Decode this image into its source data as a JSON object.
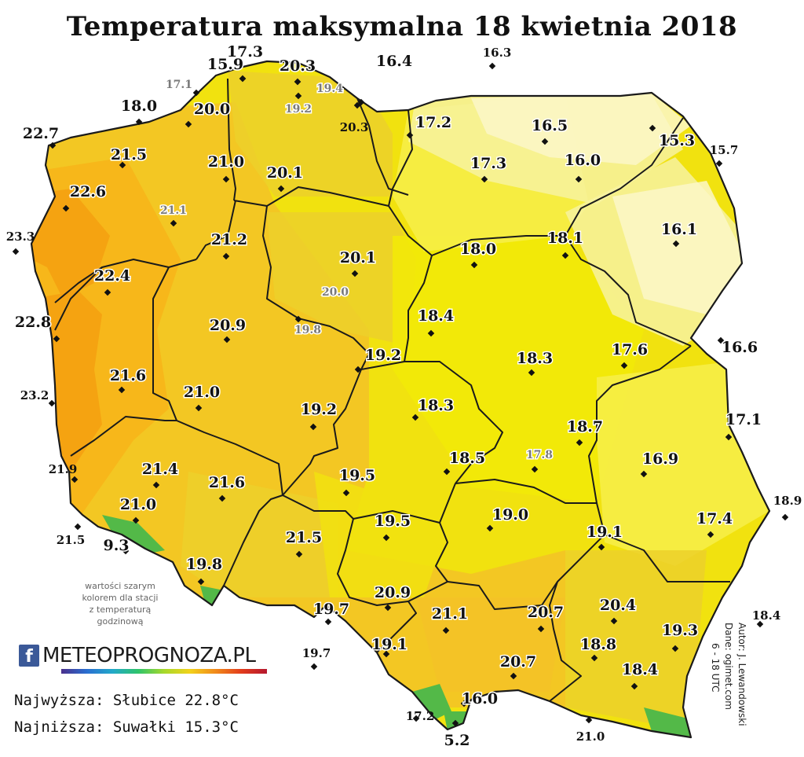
{
  "title": "Temperatura maksymalna 18 kwietnia 2018",
  "colors": {
    "outside": "#ffffff",
    "temp_23": "#f5a010",
    "temp_22": "#f7b419",
    "temp_21": "#f3c227",
    "temp_20": "#ecd02a",
    "temp_19": "#f1e20f",
    "temp_18": "#f2ea07",
    "temp_17": "#f7ef4a",
    "temp_16": "#f7f2a0",
    "temp_15": "#fbf7c8",
    "mountain": "#53b948",
    "border": "#1a1a1a"
  },
  "stations": [
    {
      "value": "17.3",
      "style": "bold"
    },
    {
      "value": "15.9",
      "style": "bold"
    },
    {
      "value": "20.3",
      "style": "bold"
    },
    {
      "value": "16.4",
      "style": "bold"
    },
    {
      "value": "16.3",
      "style": "small"
    },
    {
      "value": "17.1",
      "style": "gray"
    },
    {
      "value": "19.4",
      "style": "gray"
    },
    {
      "value": "19.2",
      "style": "gray"
    },
    {
      "value": "18.0",
      "style": "bold"
    },
    {
      "value": "20.0",
      "style": "bold"
    },
    {
      "value": "20.3",
      "style": "small"
    },
    {
      "value": "17.2",
      "style": "bold"
    },
    {
      "value": "16.5",
      "style": "bold"
    },
    {
      "value": "22.7",
      "style": "bold"
    },
    {
      "value": "15.3",
      "style": "bold"
    },
    {
      "value": "15.7",
      "style": "small"
    },
    {
      "value": "21.5",
      "style": "bold"
    },
    {
      "value": "21.0",
      "style": "bold"
    },
    {
      "value": "17.3",
      "style": "bold"
    },
    {
      "value": "16.0",
      "style": "bold"
    },
    {
      "value": "20.1",
      "style": "bold"
    },
    {
      "value": "22.6",
      "style": "bold"
    },
    {
      "value": "21.1",
      "style": "gray"
    },
    {
      "value": "16.1",
      "style": "bold"
    },
    {
      "value": "23.3",
      "style": "small"
    },
    {
      "value": "21.2",
      "style": "bold"
    },
    {
      "value": "18.0",
      "style": "bold"
    },
    {
      "value": "18.1",
      "style": "bold"
    },
    {
      "value": "20.1",
      "style": "bold"
    },
    {
      "value": "22.4",
      "style": "bold"
    },
    {
      "value": "20.0",
      "style": "gray"
    },
    {
      "value": "18.4",
      "style": "bold"
    },
    {
      "value": "22.8",
      "style": "bold"
    },
    {
      "value": "19.8",
      "style": "gray"
    },
    {
      "value": "20.9",
      "style": "bold"
    },
    {
      "value": "16.6",
      "style": "bold"
    },
    {
      "value": "17.6",
      "style": "bold"
    },
    {
      "value": "19.2",
      "style": "bold"
    },
    {
      "value": "18.3",
      "style": "bold"
    },
    {
      "value": "21.6",
      "style": "bold"
    },
    {
      "value": "23.2",
      "style": "small"
    },
    {
      "value": "21.0",
      "style": "bold"
    },
    {
      "value": "18.3",
      "style": "bold"
    },
    {
      "value": "19.2",
      "style": "bold"
    },
    {
      "value": "17.1",
      "style": "bold"
    },
    {
      "value": "18.7",
      "style": "bold"
    },
    {
      "value": "16.9",
      "style": "bold"
    },
    {
      "value": "18.5",
      "style": "bold"
    },
    {
      "value": "17.8",
      "style": "gray"
    },
    {
      "value": "21.4",
      "style": "bold"
    },
    {
      "value": "21.9",
      "style": "small"
    },
    {
      "value": "19.5",
      "style": "bold"
    },
    {
      "value": "21.6",
      "style": "bold"
    },
    {
      "value": "18.9",
      "style": "small"
    },
    {
      "value": "21.0",
      "style": "bold"
    },
    {
      "value": "19.0",
      "style": "bold"
    },
    {
      "value": "17.4",
      "style": "bold"
    },
    {
      "value": "19.5",
      "style": "bold"
    },
    {
      "value": "21.5",
      "style": "small"
    },
    {
      "value": "9.3",
      "style": "bold"
    },
    {
      "value": "21.5",
      "style": "bold"
    },
    {
      "value": "19.1",
      "style": "bold"
    },
    {
      "value": "19.8",
      "style": "bold"
    },
    {
      "value": "20.9",
      "style": "bold"
    },
    {
      "value": "20.4",
      "style": "bold"
    },
    {
      "value": "19.7",
      "style": "bold"
    },
    {
      "value": "21.1",
      "style": "bold"
    },
    {
      "value": "20.7",
      "style": "bold"
    },
    {
      "value": "18.4",
      "style": "small"
    },
    {
      "value": "19.3",
      "style": "bold"
    },
    {
      "value": "19.1",
      "style": "bold"
    },
    {
      "value": "18.8",
      "style": "bold"
    },
    {
      "value": "19.7",
      "style": "small"
    },
    {
      "value": "20.7",
      "style": "bold"
    },
    {
      "value": "18.4",
      "style": "bold"
    },
    {
      "value": "16.0",
      "style": "bold"
    },
    {
      "value": "17.2",
      "style": "small"
    },
    {
      "value": "21.0",
      "style": "small"
    },
    {
      "value": "5.2",
      "style": "bold"
    }
  ],
  "note": "wartości szarym\nkolorem dla stacji\nz temperaturą\ngodzinową",
  "logo": {
    "icon": "facebook-icon",
    "text": "METEOPROGNOZA.PL"
  },
  "highest": "Najwyższa: Słubice 22.8°C",
  "lowest": "Najniższa: Suwałki 15.3°C",
  "credits": {
    "author": "Autor: J. Lewandowski",
    "data": "Dane: ogimet.com",
    "hours": "6 - 18 UTC"
  }
}
